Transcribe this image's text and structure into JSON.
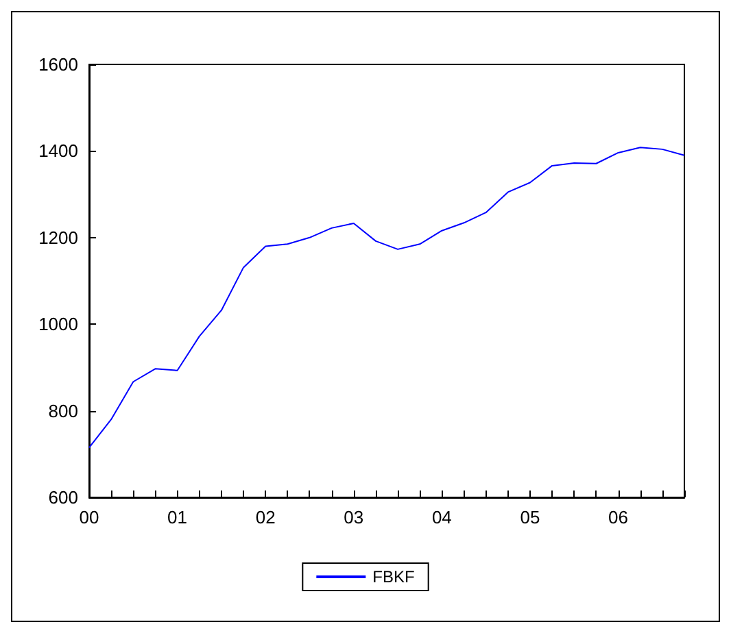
{
  "chart_data": {
    "type": "line",
    "categories": [
      "00",
      null,
      null,
      null,
      "01",
      null,
      null,
      null,
      "02",
      null,
      null,
      null,
      "03",
      null,
      null,
      null,
      "04",
      null,
      null,
      null,
      "05",
      null,
      null,
      null,
      "06",
      null,
      null,
      null
    ],
    "series": [
      {
        "name": "FBKF",
        "color": "#0000ff",
        "values": [
          715,
          780,
          867,
          897,
          893,
          972,
          1032,
          1131,
          1180,
          1185,
          1200,
          1222,
          1233,
          1192,
          1173,
          1185,
          1216,
          1234,
          1258,
          1305,
          1327,
          1366,
          1372,
          1371,
          1396,
          1408,
          1404,
          1390
        ]
      }
    ],
    "ylim": [
      600,
      1600
    ],
    "yticks": [
      600,
      800,
      1000,
      1200,
      1400,
      1600
    ],
    "grid": false,
    "legend": "bottom",
    "marker": "none",
    "line_style": "solid"
  }
}
